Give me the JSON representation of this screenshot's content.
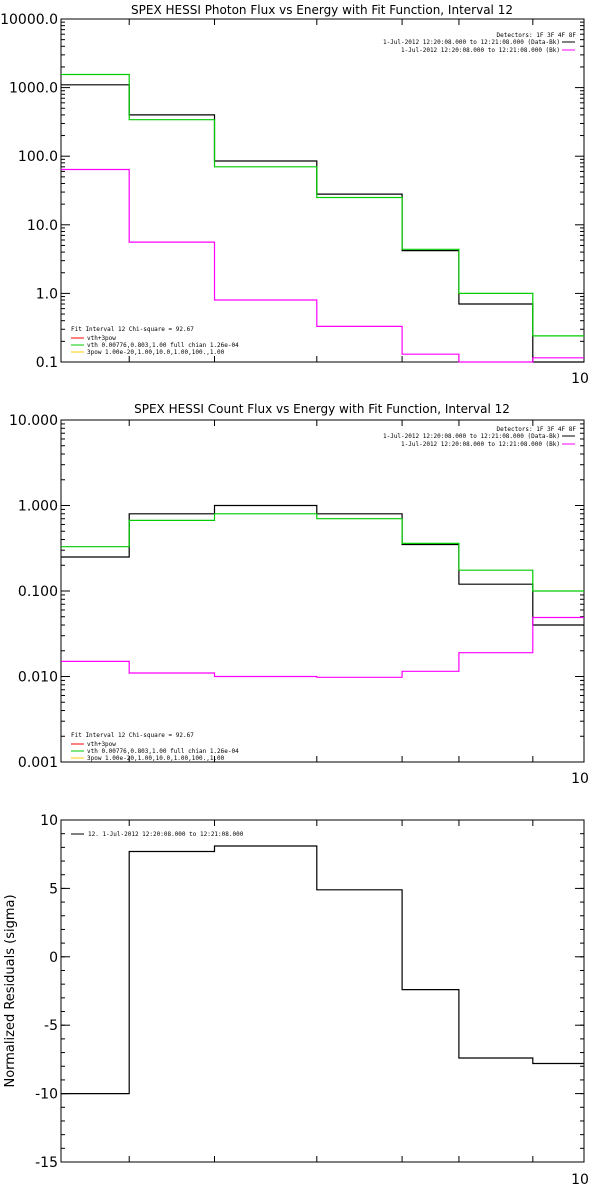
{
  "chart_data": [
    {
      "type": "line",
      "title": "SPEX HESSI Photon Flux vs Energy with Fit Function, Interval 12",
      "xlabel": "",
      "ylabel": "",
      "yscale": "log",
      "ylim": [
        0.1,
        10000
      ],
      "y_tick_labels": [
        "0.1",
        "1.0",
        "10.0",
        "100.0",
        "1000.0",
        "10000.0"
      ],
      "x_tick_labels": [
        "10"
      ],
      "bin_edges": [
        3.0,
        4.2,
        5.7,
        7.5,
        9.0,
        10.0,
        11.3,
        12.2
      ],
      "legend_top": {
        "header": "Detectors: 1F 3F 4F 8F",
        "entries": [
          {
            "text": "1-Jul-2012 12:20:08.000 to 12:21:08.000 (Data-Bk)",
            "color": "#000000"
          },
          {
            "text": "1-Jul-2012 12:20:08.000 to 12:21:08.000 (Bk)",
            "color": "#ff00ff"
          }
        ]
      },
      "legend_bottom": {
        "header": "Fit Interval 12    Chi-square = 92.67",
        "entries": [
          {
            "text": "vth+3pow",
            "color": "#ff0000"
          },
          {
            "text": "vth 0.00776,0.803,1.00  full chian 1.26e-04",
            "color": "#00cc00"
          },
          {
            "text": "3pow 1.00e-20,1.00,10.0,1.00,100.,1.00",
            "color": "#ffcc00"
          }
        ]
      },
      "series": [
        {
          "color": "#000000",
          "values": [
            1100,
            400,
            85,
            28,
            4.2,
            0.7,
            0.1
          ]
        },
        {
          "color": "#00cc00",
          "values": [
            1550,
            340,
            70,
            25,
            4.4,
            1.0,
            0.24
          ]
        },
        {
          "color": "#ff00ff",
          "values": [
            64,
            5.6,
            0.8,
            0.33,
            0.13,
            0.1,
            0.115
          ]
        }
      ]
    },
    {
      "type": "line",
      "title": "SPEX HESSI Count Flux vs Energy with Fit Function, Interval 12",
      "xlabel": "",
      "ylabel": "",
      "yscale": "log",
      "ylim": [
        0.001,
        10
      ],
      "y_tick_labels": [
        "0.001",
        "0.010",
        "0.100",
        "1.000",
        "10.000"
      ],
      "x_tick_labels": [
        "10"
      ],
      "bin_edges": [
        3.0,
        4.2,
        5.7,
        7.5,
        9.0,
        10.0,
        11.3,
        12.2
      ],
      "legend_top": {
        "header": "Detectors: 1F 3F 4F 8F",
        "entries": [
          {
            "text": "1-Jul-2012 12:20:08.000 to 12:21:08.000 (Data-Bk)",
            "color": "#000000"
          },
          {
            "text": "1-Jul-2012 12:20:08.000 to 12:21:08.000 (Bk)",
            "color": "#ff00ff"
          }
        ]
      },
      "legend_bottom": {
        "header": "Fit Interval 12    Chi-square = 92.67",
        "entries": [
          {
            "text": "vth+3pow",
            "color": "#ff0000"
          },
          {
            "text": "vth 0.00776,0.803,1.00  full chian 1.26e-04",
            "color": "#00cc00"
          },
          {
            "text": "3pow 1.00e-20,1.00,10.0,1.00,100.,1.00",
            "color": "#ffcc00"
          }
        ]
      },
      "series": [
        {
          "color": "#000000",
          "values": [
            0.25,
            0.8,
            1.0,
            0.8,
            0.35,
            0.12,
            0.04
          ]
        },
        {
          "color": "#00cc00",
          "values": [
            0.33,
            0.67,
            0.8,
            0.7,
            0.36,
            0.175,
            0.1
          ]
        },
        {
          "color": "#ff00ff",
          "values": [
            0.015,
            0.011,
            0.01,
            0.0098,
            0.0115,
            0.019,
            0.049
          ]
        }
      ]
    },
    {
      "type": "line",
      "title": "",
      "xlabel": "",
      "ylabel": "Normalized Residuals (sigma)",
      "yscale": "linear",
      "ylim": [
        -15,
        10
      ],
      "y_tick_labels": [
        "-15",
        "-10",
        "-5",
        "0",
        "5",
        "10"
      ],
      "x_tick_labels": [
        "10"
      ],
      "bin_edges": [
        3.0,
        4.2,
        5.7,
        7.5,
        9.0,
        10.0,
        11.3,
        12.2
      ],
      "legend": {
        "entries": [
          {
            "text": "12.  1-Jul-2012 12:20:08.000 to 12:21:08.000",
            "color": "#000000"
          }
        ]
      },
      "series": [
        {
          "color": "#000000",
          "values": [
            -10.0,
            7.7,
            8.1,
            4.9,
            -2.4,
            -7.4,
            -7.8
          ]
        }
      ]
    }
  ]
}
